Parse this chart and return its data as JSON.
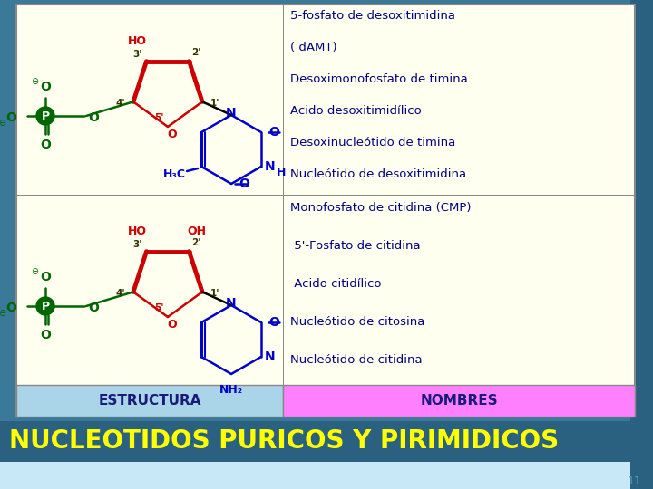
{
  "title": "NUCLEOTIDOS PURICOS Y PIRIMIDICOS",
  "title_color": "#FFFF00",
  "title_bg_top": "#4a9ab5",
  "title_bg_dark": "#2a6080",
  "header_estructura": "ESTRUCTURA",
  "header_nombres": "NOMBRES",
  "header_bg_estructura": "#aad4e8",
  "header_bg_nombres": "#ff80ff",
  "header_text_color": "#1a1a7a",
  "cell_bg": "#fffff0",
  "row1_names": [
    "Nucleótido de citidina",
    "Nucleótido de citosina",
    " Acido citidílico",
    " 5'-Fosfato de citidina",
    "Monofosfato de citidina (CMP)"
  ],
  "row2_names": [
    "Nucleótido de desoxitimidina",
    "Desoxinucleótido de timina",
    "Acido desoxitimidílico",
    "Desoximonofosfato de timina",
    "( dAMT)",
    "5-fosfato de desoxitimidina"
  ],
  "names_text_color": "#000080",
  "slide_bg": "#3a8aaa",
  "slide_bg_dark": "#2a6080",
  "slide_number": "11",
  "border_color": "#888888",
  "green": "#006600",
  "red": "#cc0000",
  "blue": "#0000cc",
  "darkblue": "#000080"
}
